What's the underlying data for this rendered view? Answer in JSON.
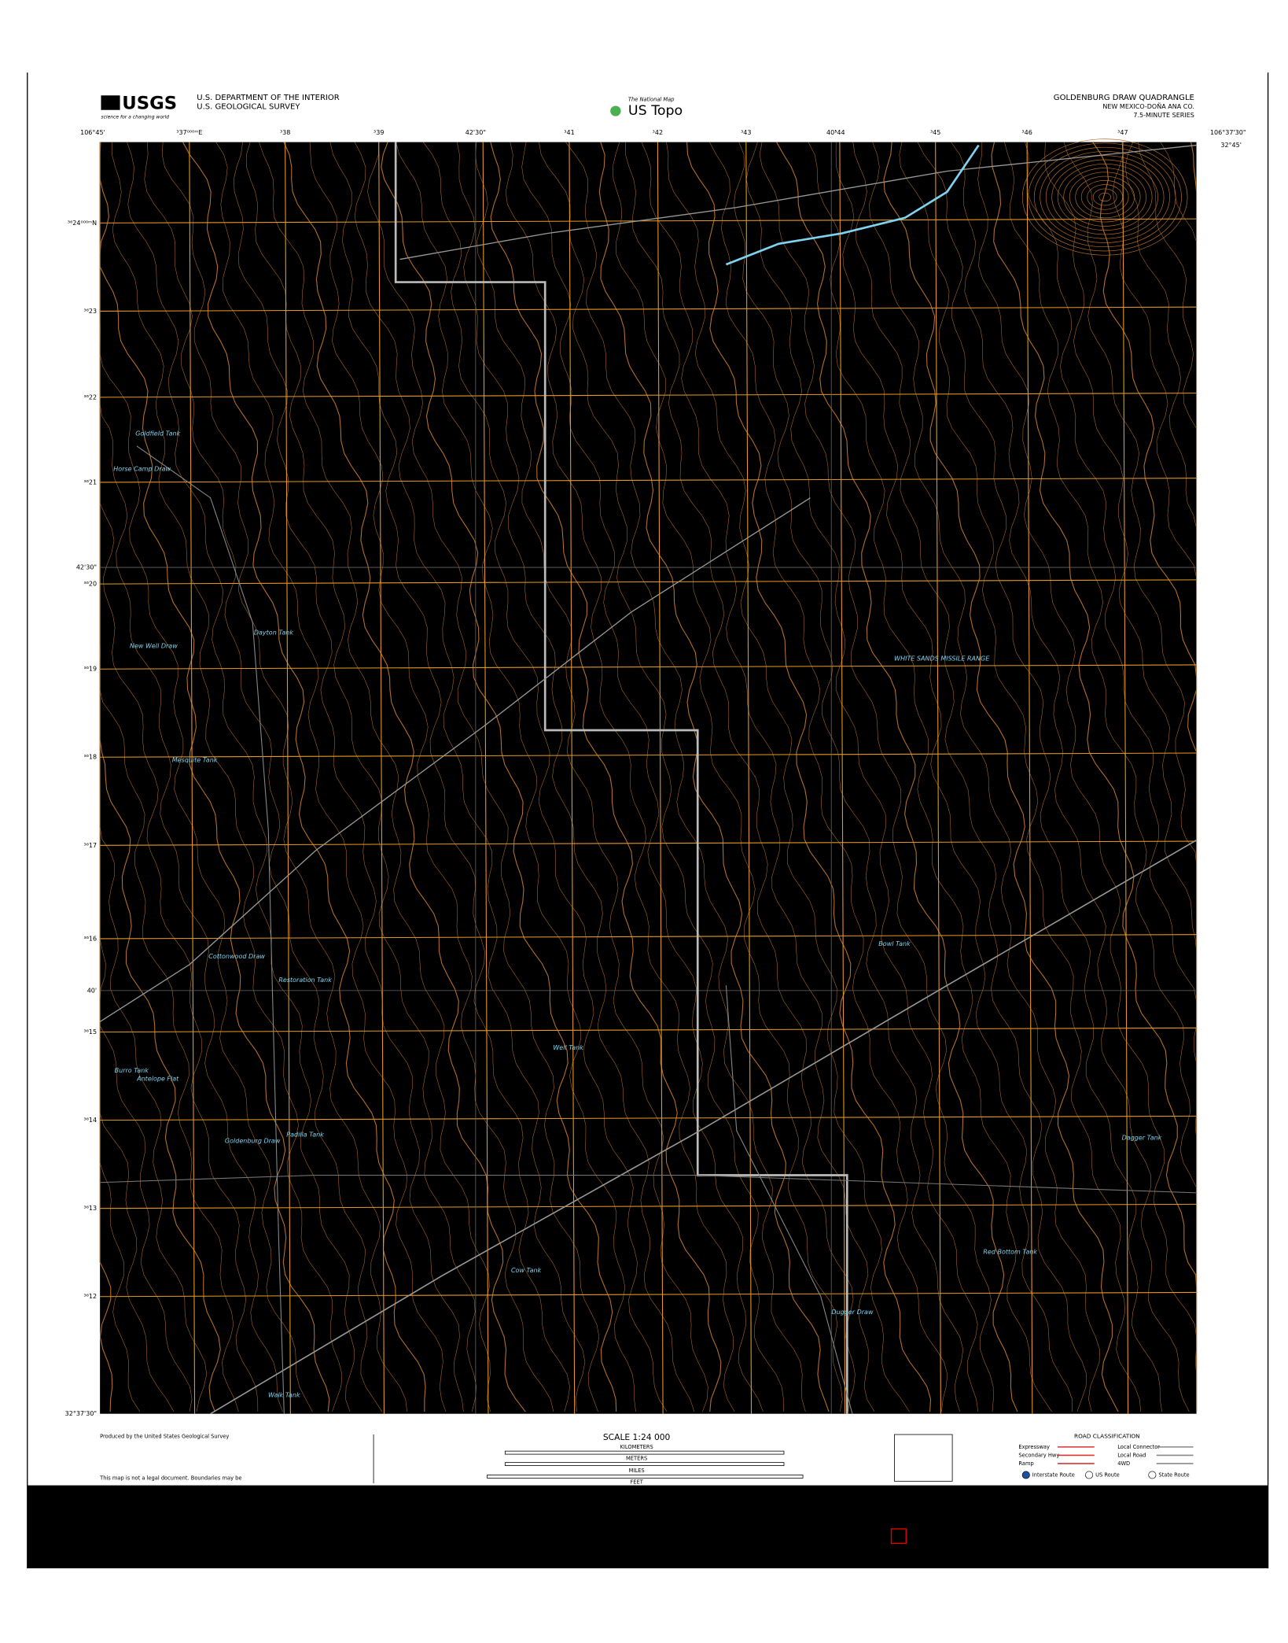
{
  "header": {
    "logo": "USGS",
    "tagline": "science for a changing world",
    "department": "U.S. DEPARTMENT OF THE INTERIOR",
    "survey": "U.S. GEOLOGICAL SURVEY",
    "national_map": "The National Map",
    "us_topo": "US Topo",
    "quad_title": "GOLDENBURG DRAW QUADRANGLE",
    "state_county": "NEW MEXICO-DOÑA ANA CO.",
    "series": "7.5-MINUTE SERIES"
  },
  "top_labels": [
    "106°45'",
    "³37⁰⁰⁰ᵐE",
    "³38",
    "³39",
    "42'30\"",
    "³41",
    "³42",
    "³43",
    "40'",
    "³44",
    "³45",
    "³46",
    "³47",
    "106°37'30\"",
    "32°45'"
  ],
  "left_labels": [
    "³⁶24⁰⁰⁰ᵐN",
    "³⁶23",
    "³⁶22",
    "³⁶21",
    "42'30\"",
    "³⁶20",
    "³⁶19",
    "³⁶18",
    "³⁶17",
    "³⁶16",
    "40'",
    "³⁶15",
    "³⁶14",
    "³⁶13",
    "³⁶12",
    "32°37'30\""
  ],
  "place_names": [
    "Goldfield Tank",
    "Horse Camp Draw",
    "New Well Draw",
    "Dayton Tank",
    "Mesquite Tank",
    "Cottonwood Draw",
    "Restoration Tank",
    "Burro Tank",
    "Antelope Flat",
    "Goldenburg Draw",
    "Padilla Tank",
    "Walk Tank",
    "Well Tank",
    "Cow Tank",
    "Bowl Tank",
    "Dagger Tank",
    "Red Bottom Tank",
    "Dugger Draw",
    "WHITE SANDS MISSILE RANGE"
  ],
  "footer": {
    "produced": "Produced by the United States Geological Survey",
    "scale": "SCALE 1:24 000",
    "kilometers": "KILOMETERS",
    "meters": "METERS",
    "miles": "MILES",
    "feet": "FEET",
    "road_title": "ROAD CLASSIFICATION",
    "roads": [
      "Expressway",
      "Secondary Hwy",
      "Ramp",
      "Local Connector",
      "Local Road",
      "4WD"
    ],
    "routes": [
      "Interstate Route",
      "US Route",
      "State Route"
    ],
    "legal": "This map is not a legal document. Boundaries may be"
  }
}
